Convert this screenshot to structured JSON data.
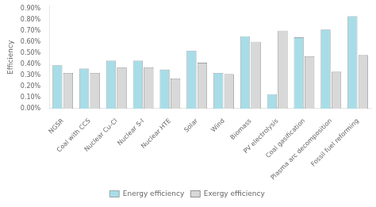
{
  "chart_data": {
    "type": "bar",
    "categories": [
      "NGSR",
      "Coal with CCS",
      "Nuclear Cu-Cl",
      "Nuclear S-I",
      "Nuclear HTE",
      "Solar",
      "Wind",
      "Biomass",
      "PV electrolysis",
      "Coal gasification",
      "Plasma arc decomposition",
      "Fossil fuel reforming"
    ],
    "series": [
      {
        "name": "Energy efficiency",
        "color": "#a8dde8",
        "values": [
          0.39,
          0.36,
          0.43,
          0.43,
          0.35,
          0.52,
          0.32,
          0.65,
          0.13,
          0.64,
          0.71,
          0.83
        ]
      },
      {
        "name": "Exergy efficiency",
        "color": "#d8d8d8",
        "values": [
          0.32,
          0.32,
          0.37,
          0.37,
          0.27,
          0.41,
          0.31,
          0.6,
          0.7,
          0.47,
          0.33,
          0.48
        ]
      }
    ],
    "ylabel": "Efficiency",
    "ylim": [
      0,
      0.92
    ],
    "yticks": [
      {
        "value": 0.0,
        "label": "0.00%"
      },
      {
        "value": 0.1,
        "label": "0.10%"
      },
      {
        "value": 0.2,
        "label": "0.20%"
      },
      {
        "value": 0.3,
        "label": "0.30%"
      },
      {
        "value": 0.4,
        "label": "0.40%"
      },
      {
        "value": 0.5,
        "label": "0.50%"
      },
      {
        "value": 0.6,
        "label": "0.60%"
      },
      {
        "value": 0.7,
        "label": "0.70%"
      },
      {
        "value": 0.8,
        "label": "0.80%"
      },
      {
        "value": 0.9,
        "label": "0.90%"
      }
    ],
    "grid": false,
    "legend": "bottom"
  }
}
